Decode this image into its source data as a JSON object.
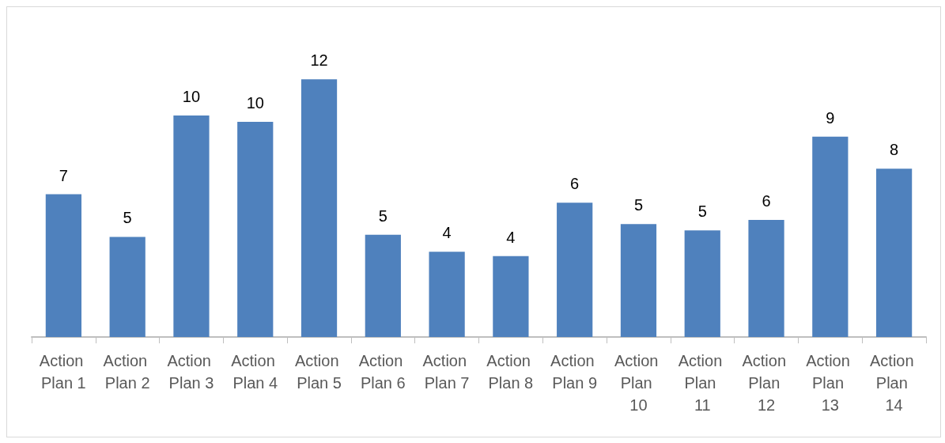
{
  "chart_data": {
    "type": "bar",
    "categories": [
      "Action Plan 1",
      "Action Plan 2",
      "Action Plan 3",
      "Action Plan 4",
      "Action Plan 5",
      "Action Plan 6",
      "Action Plan 7",
      "Action Plan 8",
      "Action Plan 9",
      "Action Plan 10",
      "Action Plan 11",
      "Action Plan 12",
      "Action Plan 13",
      "Action Plan 14"
    ],
    "values": [
      6.7,
      4.7,
      10.4,
      10.1,
      12.1,
      4.8,
      4.0,
      3.8,
      6.3,
      5.3,
      5.0,
      5.5,
      9.4,
      7.9
    ],
    "value_labels": [
      "7",
      "5",
      "10",
      "10",
      "12",
      "5",
      "4",
      "4",
      "6",
      "5",
      "5",
      "6",
      "9",
      "8"
    ],
    "color": "#4f81bd",
    "tick_labels": "x"
  }
}
